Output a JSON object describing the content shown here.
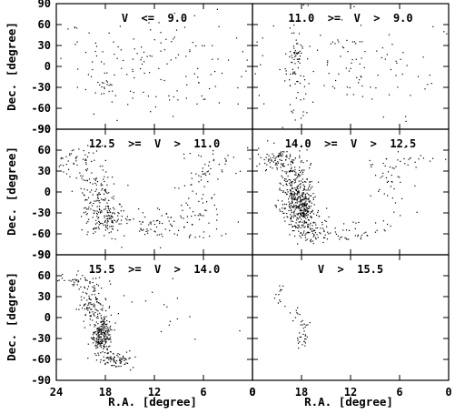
{
  "chart_data": {
    "type": "scatter",
    "xlabel": "R.A. [degree]",
    "ylabel": "Dec. [degree]",
    "xlim": [
      24,
      0
    ],
    "ylim": [
      -90,
      90
    ],
    "x_ticks_left": [
      "24",
      "18",
      "12",
      "6",
      "0"
    ],
    "x_ticks_right": [
      "0",
      "18",
      "12",
      "6",
      "0"
    ],
    "y_ticks": [
      "90",
      "60",
      "30",
      "0",
      "-30",
      "-60",
      "-90"
    ],
    "panels": [
      {
        "title": "V  <=  9.0",
        "clusters": [
          {
            "x": 12,
            "y": 0,
            "sx": 6.5,
            "sy": 38,
            "n": 150
          },
          {
            "x": 18.3,
            "y": -28,
            "sx": 0.5,
            "sy": 8,
            "n": 12
          }
        ]
      },
      {
        "title": "11.0  >=  V  >  9.0",
        "clusters": [
          {
            "x": 12,
            "y": 5,
            "sx": 6.5,
            "sy": 36,
            "n": 120
          },
          {
            "x": 18.8,
            "y": -10,
            "sx": 0.7,
            "sy": 30,
            "n": 60
          },
          {
            "x": 18.5,
            "y": 20,
            "sx": 0.4,
            "sy": 8,
            "n": 15
          }
        ]
      },
      {
        "title": "12.5  >=  V  >  11.0",
        "clusters": [
          {
            "x": 19,
            "y": -15,
            "sx": 1.3,
            "sy": 25,
            "n": 160
          },
          {
            "x": 21.5,
            "y": 45,
            "sx": 1.5,
            "sy": 10,
            "n": 50
          },
          {
            "x": 17.5,
            "y": -40,
            "sx": 1,
            "sy": 12,
            "n": 60
          },
          {
            "x": 12,
            "y": -45,
            "sx": 3.5,
            "sy": 12,
            "n": 90
          },
          {
            "x": 6,
            "y": -5,
            "sx": 1.5,
            "sy": 30,
            "n": 60
          },
          {
            "x": 4,
            "y": 45,
            "sx": 2,
            "sy": 10,
            "n": 25
          }
        ]
      },
      {
        "title": "14.0  >=  V  >  12.5",
        "clusters": [
          {
            "x": 19,
            "y": 5,
            "sx": 1,
            "sy": 25,
            "n": 220
          },
          {
            "x": 18,
            "y": -25,
            "sx": 0.8,
            "sy": 15,
            "n": 260
          },
          {
            "x": 21,
            "y": 45,
            "sx": 1.4,
            "sy": 10,
            "n": 80
          },
          {
            "x": 16.5,
            "y": -55,
            "sx": 1.2,
            "sy": 8,
            "n": 60
          },
          {
            "x": 12,
            "y": -55,
            "sx": 2.5,
            "sy": 8,
            "n": 40
          },
          {
            "x": 7,
            "y": 10,
            "sx": 1.2,
            "sy": 25,
            "n": 40
          },
          {
            "x": 4,
            "y": 48,
            "sx": 2,
            "sy": 8,
            "n": 20
          }
        ]
      },
      {
        "title": "15.5  >=  V  >  14.0",
        "clusters": [
          {
            "x": 19.5,
            "y": 20,
            "sx": 0.8,
            "sy": 18,
            "n": 120
          },
          {
            "x": 18.5,
            "y": -25,
            "sx": 0.6,
            "sy": 15,
            "n": 220
          },
          {
            "x": 22,
            "y": 55,
            "sx": 1.2,
            "sy": 5,
            "n": 30
          },
          {
            "x": 16.5,
            "y": -60,
            "sx": 1,
            "sy": 6,
            "n": 70
          },
          {
            "x": 10,
            "y": 15,
            "sx": 3,
            "sy": 25,
            "n": 15
          }
        ]
      },
      {
        "title": "V  >  15.5",
        "clusters": [
          {
            "x": 20.5,
            "y": 35,
            "sx": 0.4,
            "sy": 6,
            "n": 12
          },
          {
            "x": 18,
            "y": -25,
            "sx": 0.4,
            "sy": 12,
            "n": 30
          },
          {
            "x": 18.7,
            "y": 5,
            "sx": 0.4,
            "sy": 8,
            "n": 8
          }
        ]
      }
    ]
  }
}
